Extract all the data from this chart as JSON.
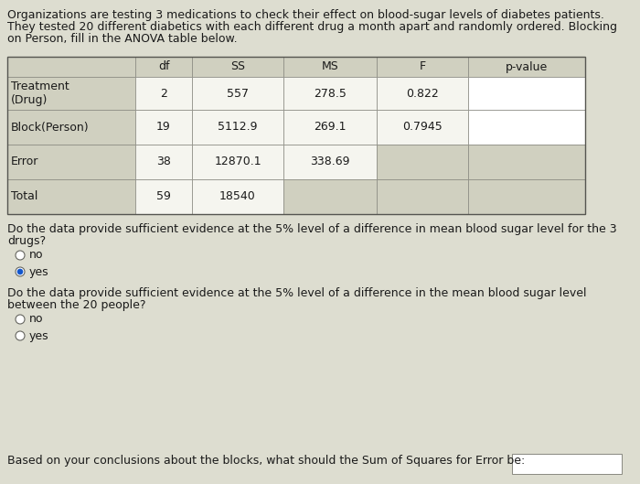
{
  "background_color": "#ddddd0",
  "intro_text_lines": [
    "Organizations are testing 3 medications to check their effect on blood-sugar levels of diabetes patients.",
    "They tested 20 different diabetics with each different drug a month apart and randomly ordered. Blocking",
    "on Person, fill in the ANOVA table below."
  ],
  "table_headers": [
    "",
    "df",
    "SS",
    "MS",
    "F",
    "p-value"
  ],
  "table_rows": [
    [
      "Treatment\n(Drug)",
      "2",
      "557",
      "278.5",
      "0.822",
      ""
    ],
    [
      "Block(Person)",
      "19",
      "5112.9",
      "269.1",
      "0.7945",
      ""
    ],
    [
      "Error",
      "38",
      "12870.1",
      "338.69",
      "",
      ""
    ],
    [
      "Total",
      "59",
      "18540",
      "",
      "",
      ""
    ]
  ],
  "question1_lines": [
    "Do the data provide sufficient evidence at the 5% level of a difference in mean blood sugar level for the 3",
    "drugs?"
  ],
  "q1_options": [
    "no",
    "yes"
  ],
  "q1_selected": 1,
  "question2_lines": [
    "Do the data provide sufficient evidence at the 5% level of a difference in the mean blood sugar level",
    "between the 20 people?"
  ],
  "q2_options": [
    "no",
    "yes"
  ],
  "q2_selected": -1,
  "question3": "Based on your conclusions about the blocks, what should the Sum of Squares for Error be:",
  "cell_bg": "#d0d0c0",
  "cell_white": "#f5f5ef",
  "cell_input": "#ffffff",
  "text_color": "#1a1a1a",
  "border_color": "#888880",
  "font_size": 9.0,
  "radio_selected_color": "#1155cc"
}
